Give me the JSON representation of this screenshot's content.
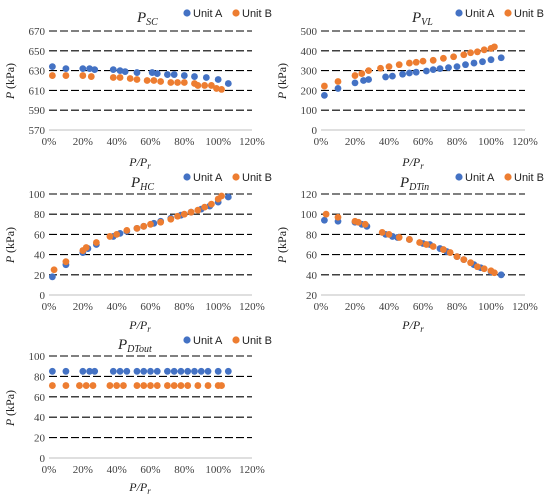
{
  "colors": {
    "unit_a": "#4472C4",
    "unit_b": "#ED7D31"
  },
  "chart_data": [
    {
      "type": "scatter",
      "title_main": "P",
      "title_sub": "SC",
      "xlabel_main": "P",
      "xlabel_sep": "/",
      "xlabel_sub": "r",
      "ylabel_main": "P",
      "ylabel_unit": "(kPa)",
      "x_ticks": [
        "0%",
        "20%",
        "40%",
        "60%",
        "80%",
        "100%",
        "120%"
      ],
      "y_ticks": [
        570,
        590,
        610,
        630,
        650,
        670
      ],
      "xlim": [
        0,
        1.2
      ],
      "ylim": [
        570,
        670
      ],
      "grid": true,
      "legend": "top-right",
      "series": [
        {
          "name": "Unit A",
          "points": [
            [
              0.02,
              634
            ],
            [
              0.1,
              632
            ],
            [
              0.2,
              632
            ],
            [
              0.24,
              632
            ],
            [
              0.27,
              631
            ],
            [
              0.38,
              631
            ],
            [
              0.42,
              630
            ],
            [
              0.45,
              629
            ],
            [
              0.52,
              628
            ],
            [
              0.61,
              628
            ],
            [
              0.64,
              627
            ],
            [
              0.7,
              626
            ],
            [
              0.74,
              626
            ],
            [
              0.8,
              625
            ],
            [
              0.86,
              624
            ],
            [
              0.93,
              623
            ],
            [
              1.0,
              621
            ],
            [
              1.06,
              617
            ]
          ]
        },
        {
          "name": "Unit B",
          "points": [
            [
              0.02,
              625
            ],
            [
              0.1,
              625
            ],
            [
              0.2,
              625
            ],
            [
              0.25,
              624
            ],
            [
              0.38,
              623
            ],
            [
              0.42,
              623
            ],
            [
              0.48,
              622
            ],
            [
              0.52,
              621
            ],
            [
              0.58,
              620
            ],
            [
              0.62,
              620
            ],
            [
              0.66,
              619
            ],
            [
              0.72,
              618
            ],
            [
              0.76,
              618
            ],
            [
              0.8,
              618
            ],
            [
              0.86,
              617
            ],
            [
              0.88,
              615
            ],
            [
              0.92,
              615
            ],
            [
              0.96,
              615
            ],
            [
              0.99,
              612
            ],
            [
              1.02,
              611
            ]
          ]
        }
      ]
    },
    {
      "type": "scatter",
      "title_main": "P",
      "title_sub": "VL",
      "xlabel_main": "P",
      "xlabel_sep": "/",
      "xlabel_sub": "r",
      "ylabel_main": "P",
      "ylabel_unit": "(kPa)",
      "x_ticks": [
        "0%",
        "20%",
        "40%",
        "60%",
        "80%",
        "100%",
        "120%"
      ],
      "y_ticks": [
        0,
        100,
        200,
        300,
        400,
        500
      ],
      "xlim": [
        0,
        1.2
      ],
      "ylim": [
        0,
        500
      ],
      "grid": true,
      "legend": "top-right",
      "series": [
        {
          "name": "Unit A",
          "points": [
            [
              0.02,
              175
            ],
            [
              0.1,
              210
            ],
            [
              0.2,
              238
            ],
            [
              0.25,
              250
            ],
            [
              0.28,
              255
            ],
            [
              0.38,
              268
            ],
            [
              0.42,
              272
            ],
            [
              0.48,
              282
            ],
            [
              0.52,
              288
            ],
            [
              0.56,
              292
            ],
            [
              0.62,
              298
            ],
            [
              0.66,
              305
            ],
            [
              0.7,
              310
            ],
            [
              0.75,
              315
            ],
            [
              0.8,
              320
            ],
            [
              0.85,
              330
            ],
            [
              0.9,
              338
            ],
            [
              0.95,
              345
            ],
            [
              1.0,
              355
            ],
            [
              1.06,
              365
            ]
          ]
        },
        {
          "name": "Unit B",
          "points": [
            [
              0.02,
              222
            ],
            [
              0.1,
              245
            ],
            [
              0.2,
              275
            ],
            [
              0.24,
              285
            ],
            [
              0.28,
              300
            ],
            [
              0.35,
              312
            ],
            [
              0.4,
              320
            ],
            [
              0.46,
              330
            ],
            [
              0.52,
              338
            ],
            [
              0.56,
              342
            ],
            [
              0.6,
              348
            ],
            [
              0.66,
              352
            ],
            [
              0.72,
              362
            ],
            [
              0.78,
              370
            ],
            [
              0.84,
              380
            ],
            [
              0.88,
              390
            ],
            [
              0.92,
              395
            ],
            [
              0.96,
              405
            ],
            [
              1.0,
              412
            ],
            [
              1.02,
              420
            ]
          ]
        }
      ]
    },
    {
      "type": "scatter",
      "title_main": "P",
      "title_sub": "HC",
      "xlabel_main": "P",
      "xlabel_sep": "/",
      "xlabel_sub": "r",
      "ylabel_main": "P",
      "ylabel_unit": "(kPa)",
      "x_ticks": [
        "0%",
        "20%",
        "40%",
        "60%",
        "80%",
        "100%",
        "120%"
      ],
      "y_ticks": [
        0,
        20,
        40,
        60,
        80,
        100
      ],
      "xlim": [
        0,
        1.2
      ],
      "ylim": [
        0,
        100
      ],
      "grid": true,
      "legend": "top-right",
      "series": [
        {
          "name": "Unit A",
          "points": [
            [
              0.02,
              18
            ],
            [
              0.1,
              30
            ],
            [
              0.2,
              42
            ],
            [
              0.23,
              46
            ],
            [
              0.28,
              50
            ],
            [
              0.38,
              58
            ],
            [
              0.42,
              61
            ],
            [
              0.46,
              63
            ],
            [
              0.52,
              66
            ],
            [
              0.56,
              68
            ],
            [
              0.62,
              71
            ],
            [
              0.66,
              73
            ],
            [
              0.72,
              76
            ],
            [
              0.78,
              79
            ],
            [
              0.84,
              82
            ],
            [
              0.9,
              85
            ],
            [
              0.95,
              88
            ],
            [
              1.0,
              92
            ],
            [
              1.06,
              97
            ]
          ]
        },
        {
          "name": "Unit B",
          "points": [
            [
              0.03,
              25
            ],
            [
              0.1,
              33
            ],
            [
              0.2,
              44
            ],
            [
              0.22,
              47
            ],
            [
              0.28,
              52
            ],
            [
              0.36,
              58
            ],
            [
              0.4,
              60
            ],
            [
              0.46,
              64
            ],
            [
              0.52,
              66
            ],
            [
              0.56,
              68
            ],
            [
              0.6,
              70
            ],
            [
              0.66,
              72
            ],
            [
              0.72,
              75
            ],
            [
              0.76,
              78
            ],
            [
              0.8,
              80
            ],
            [
              0.84,
              82
            ],
            [
              0.88,
              84
            ],
            [
              0.92,
              87
            ],
            [
              0.96,
              90
            ],
            [
              1.0,
              95
            ],
            [
              1.02,
              98
            ]
          ]
        }
      ]
    },
    {
      "type": "scatter",
      "title_main": "P",
      "title_sub": "DTin",
      "xlabel_main": "P",
      "xlabel_sep": "/",
      "xlabel_sub": "r",
      "ylabel_main": "P",
      "ylabel_unit": "(kPa)",
      "x_ticks": [
        "0%",
        "20%",
        "40%",
        "60%",
        "80%",
        "100%",
        "120%"
      ],
      "y_ticks": [
        20,
        40,
        60,
        80,
        100,
        120
      ],
      "xlim": [
        0,
        1.2
      ],
      "ylim": [
        20,
        120
      ],
      "grid": true,
      "legend": "top-right",
      "series": [
        {
          "name": "Unit A",
          "points": [
            [
              0.02,
              94
            ],
            [
              0.1,
              93
            ],
            [
              0.2,
              92
            ],
            [
              0.24,
              90
            ],
            [
              0.27,
              88
            ],
            [
              0.38,
              80
            ],
            [
              0.42,
              78
            ],
            [
              0.45,
              77
            ],
            [
              0.52,
              75
            ],
            [
              0.6,
              71
            ],
            [
              0.64,
              70
            ],
            [
              0.7,
              66
            ],
            [
              0.74,
              63
            ],
            [
              0.8,
              58
            ],
            [
              0.84,
              55
            ],
            [
              0.9,
              50
            ],
            [
              0.94,
              47
            ],
            [
              1.0,
              43
            ],
            [
              1.06,
              40
            ]
          ]
        },
        {
          "name": "Unit B",
          "points": [
            [
              0.03,
              100
            ],
            [
              0.1,
              97
            ],
            [
              0.2,
              93
            ],
            [
              0.22,
              92
            ],
            [
              0.26,
              90
            ],
            [
              0.36,
              82
            ],
            [
              0.4,
              80
            ],
            [
              0.46,
              77
            ],
            [
              0.52,
              75
            ],
            [
              0.58,
              72
            ],
            [
              0.62,
              70
            ],
            [
              0.66,
              68
            ],
            [
              0.72,
              65
            ],
            [
              0.76,
              62
            ],
            [
              0.8,
              58
            ],
            [
              0.84,
              55
            ],
            [
              0.88,
              52
            ],
            [
              0.92,
              48
            ],
            [
              0.96,
              46
            ],
            [
              1.0,
              44
            ],
            [
              1.02,
              42
            ]
          ]
        }
      ]
    },
    {
      "type": "scatter",
      "title_main": "P",
      "title_sub": "DTout",
      "xlabel_main": "P",
      "xlabel_sep": "/",
      "xlabel_sub": "r",
      "ylabel_main": "P",
      "ylabel_unit": "(kPa)",
      "x_ticks": [
        "0%",
        "20%",
        "40%",
        "60%",
        "80%",
        "100%",
        "120%"
      ],
      "y_ticks": [
        0,
        20,
        40,
        60,
        80,
        100
      ],
      "xlim": [
        0,
        1.2
      ],
      "ylim": [
        0,
        100
      ],
      "grid": true,
      "legend": "top-right",
      "series": [
        {
          "name": "Unit A",
          "points": [
            [
              0.02,
              85
            ],
            [
              0.1,
              85
            ],
            [
              0.2,
              85
            ],
            [
              0.24,
              85
            ],
            [
              0.27,
              85
            ],
            [
              0.38,
              85
            ],
            [
              0.42,
              85
            ],
            [
              0.46,
              85
            ],
            [
              0.52,
              85
            ],
            [
              0.56,
              85
            ],
            [
              0.6,
              85
            ],
            [
              0.64,
              85
            ],
            [
              0.7,
              85
            ],
            [
              0.74,
              85
            ],
            [
              0.78,
              85
            ],
            [
              0.82,
              85
            ],
            [
              0.86,
              85
            ],
            [
              0.9,
              85
            ],
            [
              0.94,
              85
            ],
            [
              1.0,
              85
            ],
            [
              1.06,
              85
            ]
          ]
        },
        {
          "name": "Unit B",
          "points": [
            [
              0.02,
              71
            ],
            [
              0.1,
              71
            ],
            [
              0.18,
              71
            ],
            [
              0.22,
              71
            ],
            [
              0.26,
              71
            ],
            [
              0.36,
              71
            ],
            [
              0.4,
              71
            ],
            [
              0.44,
              71
            ],
            [
              0.52,
              71
            ],
            [
              0.56,
              71
            ],
            [
              0.6,
              71
            ],
            [
              0.64,
              71
            ],
            [
              0.7,
              71
            ],
            [
              0.74,
              71
            ],
            [
              0.78,
              71
            ],
            [
              0.82,
              71
            ],
            [
              0.88,
              71
            ],
            [
              0.94,
              71
            ],
            [
              1.0,
              71
            ],
            [
              1.02,
              71
            ]
          ]
        }
      ]
    }
  ]
}
